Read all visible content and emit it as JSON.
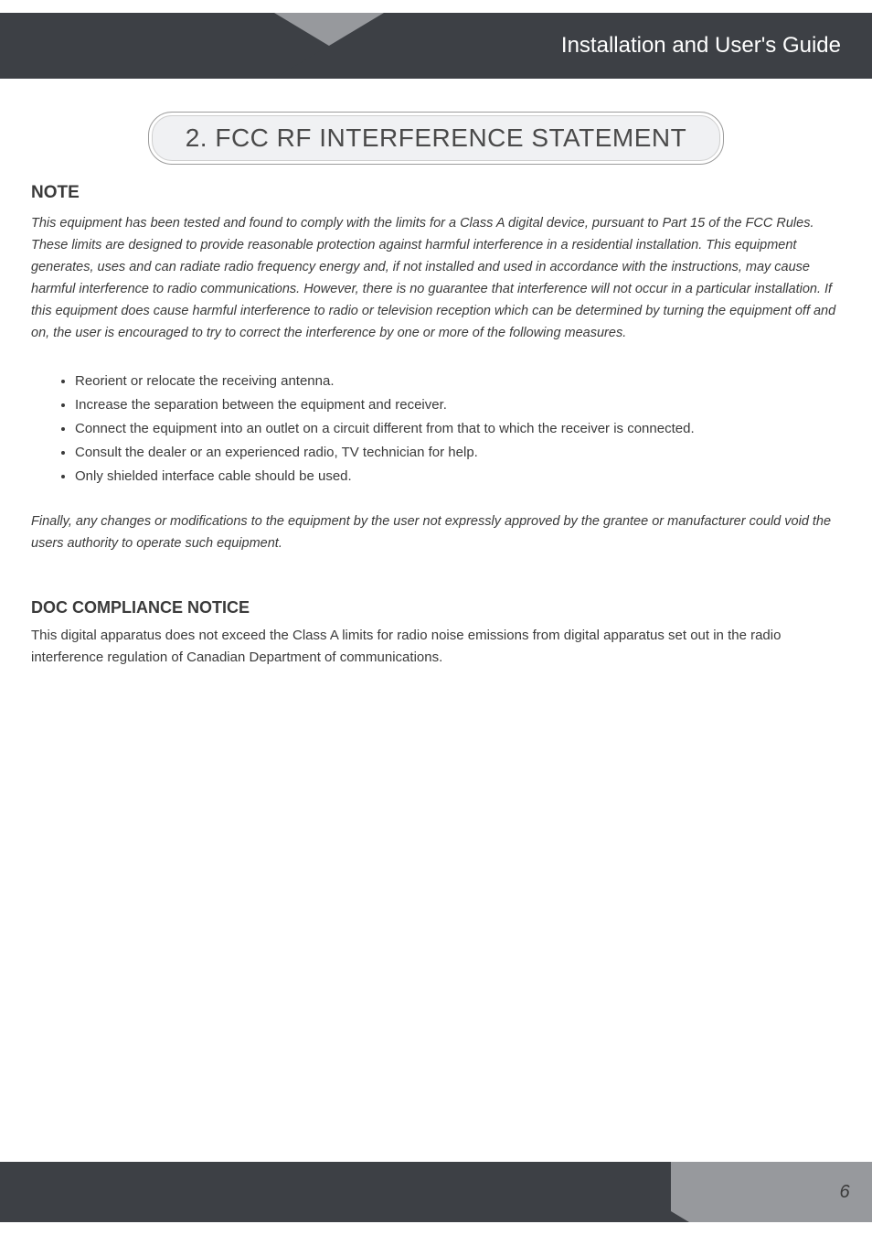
{
  "colors": {
    "header_dark": "#3d4045",
    "header_light": "#97999d",
    "text": "#3a3a3a",
    "white": "#ffffff",
    "pill_bg": "#f0f1f3",
    "pill_border_outer": "#9b9b9b",
    "pill_border_inner": "#cfcfcf"
  },
  "typography": {
    "header_title_fontsize": 24,
    "section_title_fontsize": 28,
    "heading_fontsize": 19,
    "body_fontsize": 15,
    "italic_body_fontsize": 14.5,
    "line_height": 24
  },
  "header": {
    "title": "Installation and User's Guide"
  },
  "section_title": "2. FCC RF INTERFERENCE STATEMENT",
  "note": {
    "heading": "NOTE",
    "paragraph": "This equipment has been tested and found to comply with the limits for a Class A digital device, pursuant to Part 15 of the FCC Rules. These limits are designed to provide reasonable protection against harmful interference in a residential installation.  This equipment generates, uses and can radiate radio frequency energy and, if not installed and used in accordance  with the instructions, may cause harmful interference to radio communications.  However, there is no guarantee that interference will not occur in a particular installation. If this equipment does cause harmful interference to radio or television reception which can be determined by turning the equipment off and on, the user is encouraged to try to correct the interference by one or more of the following measures.",
    "bullets": [
      "Reorient or relocate the receiving antenna.",
      "Increase the separation between the equipment and receiver.",
      "Connect the equipment into an outlet on a circuit different from that to which the receiver is connected.",
      "Consult the dealer or an experienced radio, TV technician for help.",
      "Only shielded interface cable should be used."
    ],
    "final_paragraph": "Finally, any changes or modifications to the equipment by the user not expressly approved by the grantee or manufacturer could void the users authority to operate such equipment."
  },
  "doc": {
    "heading": "DOC COMPLIANCE NOTICE",
    "paragraph": "This digital apparatus does not exceed the Class A limits for radio noise emissions from digital apparatus set out in the radio interference regulation of Canadian Department of communications."
  },
  "footer": {
    "page_number": "6"
  }
}
